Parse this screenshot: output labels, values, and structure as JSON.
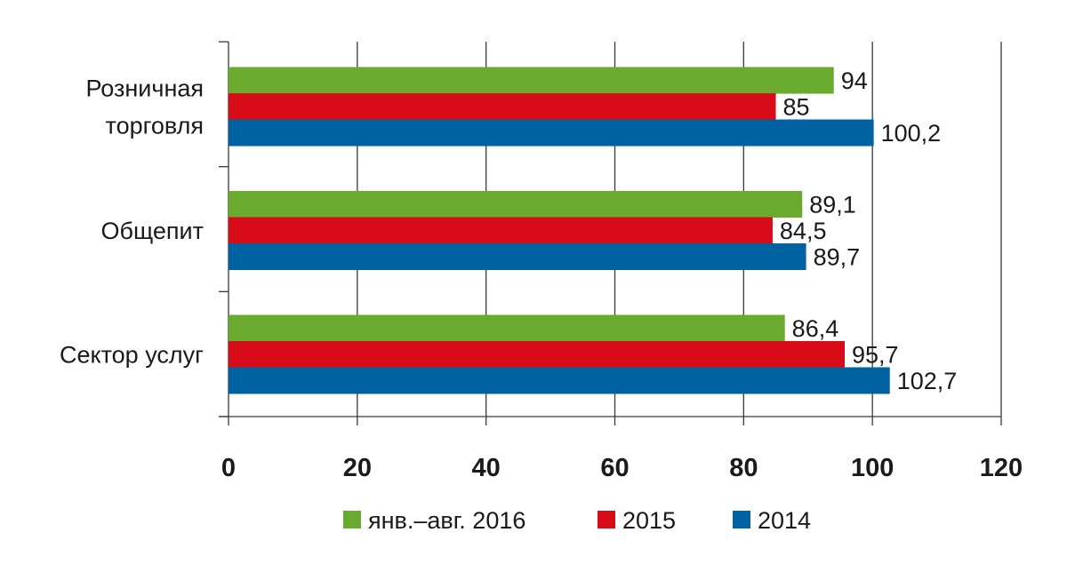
{
  "chart_data": {
    "type": "bar",
    "orientation": "horizontal",
    "categories": [
      "Розничная торговля",
      "Общепит",
      "Сектор услуг"
    ],
    "category_lines": [
      [
        "Розничная",
        "торговля"
      ],
      [
        "Общепит"
      ],
      [
        "Сектор услуг"
      ]
    ],
    "series": [
      {
        "name": "янв.–авг. 2016",
        "color": "#6aaa2e",
        "values": [
          94,
          89.1,
          86.4
        ],
        "labels": [
          "94",
          "89,1",
          "86,4"
        ]
      },
      {
        "name": "2015",
        "color": "#d80c18",
        "values": [
          85,
          84.5,
          95.7
        ],
        "labels": [
          "85",
          "84,5",
          "95,7"
        ]
      },
      {
        "name": "2014",
        "color": "#0062a0",
        "values": [
          100.2,
          89.7,
          102.7
        ],
        "labels": [
          "100,2",
          "89,7",
          "102,7"
        ]
      }
    ],
    "xlim": [
      0,
      120
    ],
    "xticks": [
      0,
      20,
      40,
      60,
      80,
      100,
      120
    ],
    "xtick_labels": [
      "0",
      "20",
      "40",
      "60",
      "80",
      "100",
      "120"
    ],
    "grid": true,
    "legend_position": "bottom",
    "title": "",
    "xlabel": "",
    "ylabel": ""
  }
}
